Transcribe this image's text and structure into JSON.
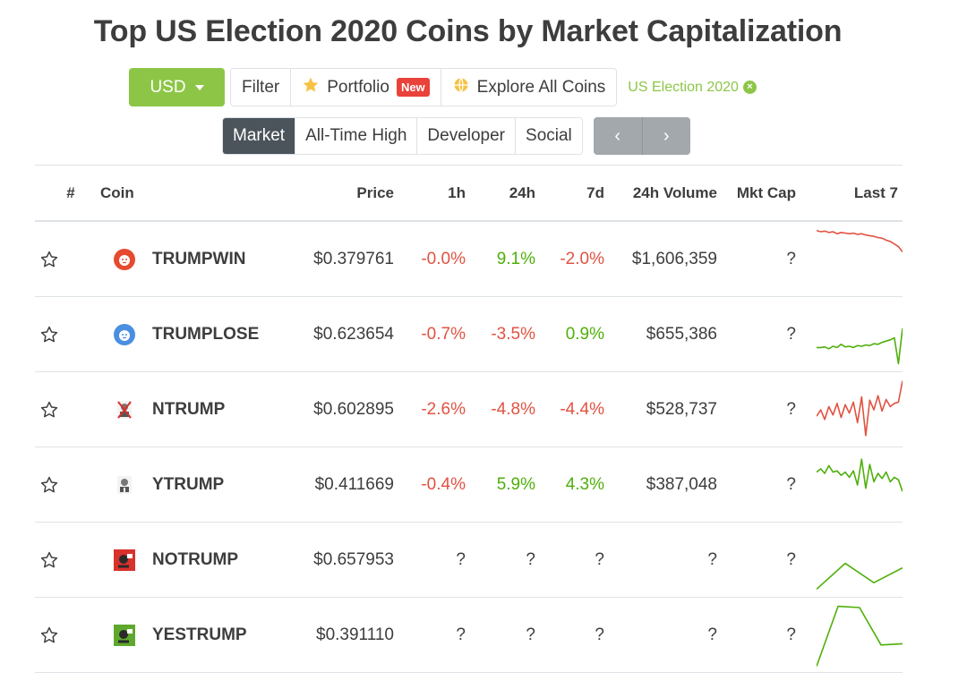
{
  "title": "Top US Election 2020 Coins by Market Capitalization",
  "toolbar": {
    "currency": "USD",
    "filter": "Filter",
    "portfolio": "Portfolio",
    "portfolio_badge": "New",
    "explore": "Explore All Coins",
    "tag": "US Election 2020"
  },
  "tabs": [
    {
      "label": "Market",
      "active": true
    },
    {
      "label": "All-Time High",
      "active": false
    },
    {
      "label": "Developer",
      "active": false
    },
    {
      "label": "Social",
      "active": false
    }
  ],
  "pager": {
    "prev_icon": "chevron-left-icon",
    "next_icon": "chevron-right-icon"
  },
  "columns": {
    "rank": "#",
    "coin": "Coin",
    "price": "Price",
    "h1": "1h",
    "h24": "24h",
    "d7": "7d",
    "volume": "24h Volume",
    "mcap": "Mkt Cap",
    "last7": "Last 7"
  },
  "colors": {
    "accent": "#8dc647",
    "negative": "#e15241",
    "positive": "#4eaf0a",
    "active_tab": "#4c545b",
    "badge": "#e9423a"
  },
  "rows": [
    {
      "name": "TRUMPWIN",
      "logo": "red-lion-icon",
      "price": "$0.379761",
      "h1": "-0.0%",
      "h1_s": "neg",
      "h24": "9.1%",
      "h24_s": "pos",
      "d7": "-2.0%",
      "d7_s": "neg",
      "volume": "$1,606,359",
      "mcap": "?",
      "spark_color": "#e15241",
      "spark": [
        0.95,
        0.93,
        0.94,
        0.92,
        0.93,
        0.9,
        0.92,
        0.91,
        0.9,
        0.91,
        0.89,
        0.9,
        0.88,
        0.87,
        0.86,
        0.84,
        0.83,
        0.8,
        0.78,
        0.74,
        0.7,
        0.62
      ]
    },
    {
      "name": "TRUMPLOSE",
      "logo": "blue-lion-icon",
      "price": "$0.623654",
      "h1": "-0.7%",
      "h1_s": "neg",
      "h24": "-3.5%",
      "h24_s": "neg",
      "d7": "0.9%",
      "d7_s": "pos",
      "volume": "$655,386",
      "mcap": "?",
      "spark_color": "#4eaf0a",
      "spark": [
        0.3,
        0.3,
        0.31,
        0.28,
        0.32,
        0.3,
        0.35,
        0.31,
        0.32,
        0.3,
        0.33,
        0.32,
        0.34,
        0.33,
        0.36,
        0.35,
        0.38,
        0.4,
        0.42,
        0.45,
        0.05,
        0.6
      ]
    },
    {
      "name": "NTRUMP",
      "logo": "ntrump-icon",
      "price": "$0.602895",
      "h1": "-2.6%",
      "h1_s": "neg",
      "h24": "-4.8%",
      "h24_s": "neg",
      "d7": "-4.4%",
      "d7_s": "neg",
      "volume": "$528,737",
      "mcap": "?",
      "spark_color": "#e15241",
      "spark": [
        0.4,
        0.5,
        0.35,
        0.55,
        0.42,
        0.6,
        0.38,
        0.58,
        0.45,
        0.62,
        0.3,
        0.7,
        0.1,
        0.65,
        0.5,
        0.72,
        0.48,
        0.66,
        0.55,
        0.6,
        0.62,
        0.95
      ]
    },
    {
      "name": "YTRUMP",
      "logo": "ytrump-icon",
      "price": "$0.411669",
      "h1": "-0.4%",
      "h1_s": "neg",
      "h24": "5.9%",
      "h24_s": "pos",
      "d7": "4.3%",
      "d7_s": "pos",
      "volume": "$387,048",
      "mcap": "?",
      "spark_color": "#4eaf0a",
      "spark": [
        0.7,
        0.75,
        0.68,
        0.8,
        0.7,
        0.72,
        0.65,
        0.7,
        0.62,
        0.72,
        0.5,
        0.9,
        0.45,
        0.82,
        0.55,
        0.68,
        0.6,
        0.7,
        0.55,
        0.62,
        0.58,
        0.4
      ]
    },
    {
      "name": "NOTRUMP",
      "logo": "notrump-icon",
      "price": "$0.657953",
      "h1": "?",
      "h1_s": "neu",
      "h24": "?",
      "h24_s": "neu",
      "d7": "?",
      "d7_s": "neu",
      "volume": "?",
      "mcap": "?",
      "spark_color": "#4eaf0a",
      "spark": [
        0.05,
        0.45,
        0.15,
        0.38
      ]
    },
    {
      "name": "YESTRUMP",
      "logo": "yestrump-icon",
      "price": "$0.391110",
      "h1": "?",
      "h1_s": "neu",
      "h24": "?",
      "h24_s": "neu",
      "d7": "?",
      "d7_s": "neu",
      "volume": "?",
      "mcap": "?",
      "spark_color": "#4eaf0a",
      "spark": [
        0.02,
        0.95,
        0.93,
        0.35,
        0.37
      ]
    }
  ]
}
